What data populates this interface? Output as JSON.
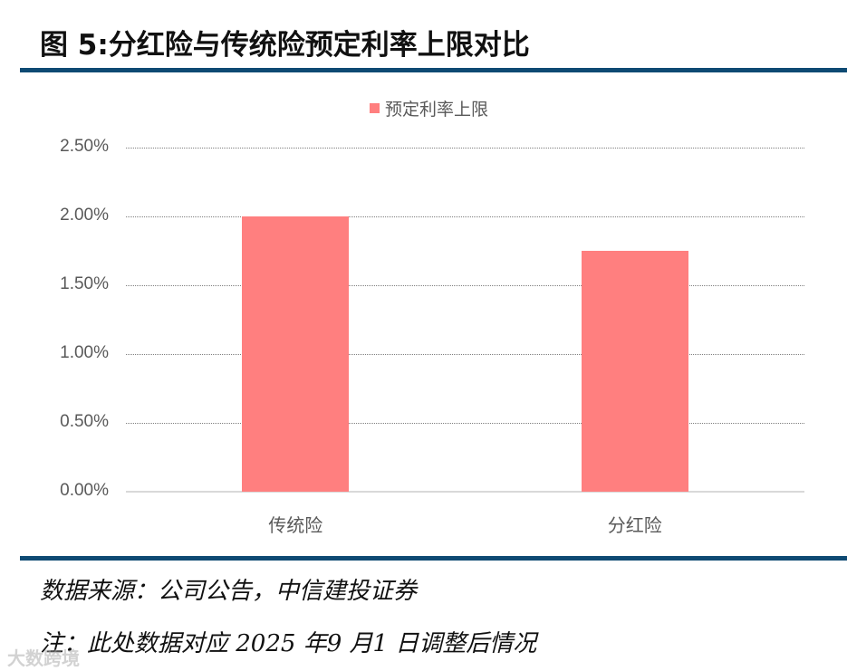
{
  "figure": {
    "title": "图 5:分红险与传统险预定利率上限对比",
    "source": "数据来源：公司公告，中信建投证券",
    "note": "注：此处数据对应 2025 年9 月1 日调整后情况",
    "watermark": "大数跨境",
    "rule_color": "#0e4a73"
  },
  "chart_data": {
    "type": "bar",
    "title": "",
    "categories": [
      "传统险",
      "分红险"
    ],
    "series": [
      {
        "name": "预定利率上限",
        "values": [
          2.0,
          1.75
        ],
        "color": "#ff7f7f"
      }
    ],
    "xlabel": "",
    "ylabel": "",
    "ylim": [
      0,
      2.5
    ],
    "y_unit": "%",
    "yticks": [
      "0.00%",
      "0.50%",
      "1.00%",
      "1.50%",
      "2.00%",
      "2.50%"
    ],
    "grid": true,
    "grid_style": "dotted",
    "legend_position": "top"
  }
}
